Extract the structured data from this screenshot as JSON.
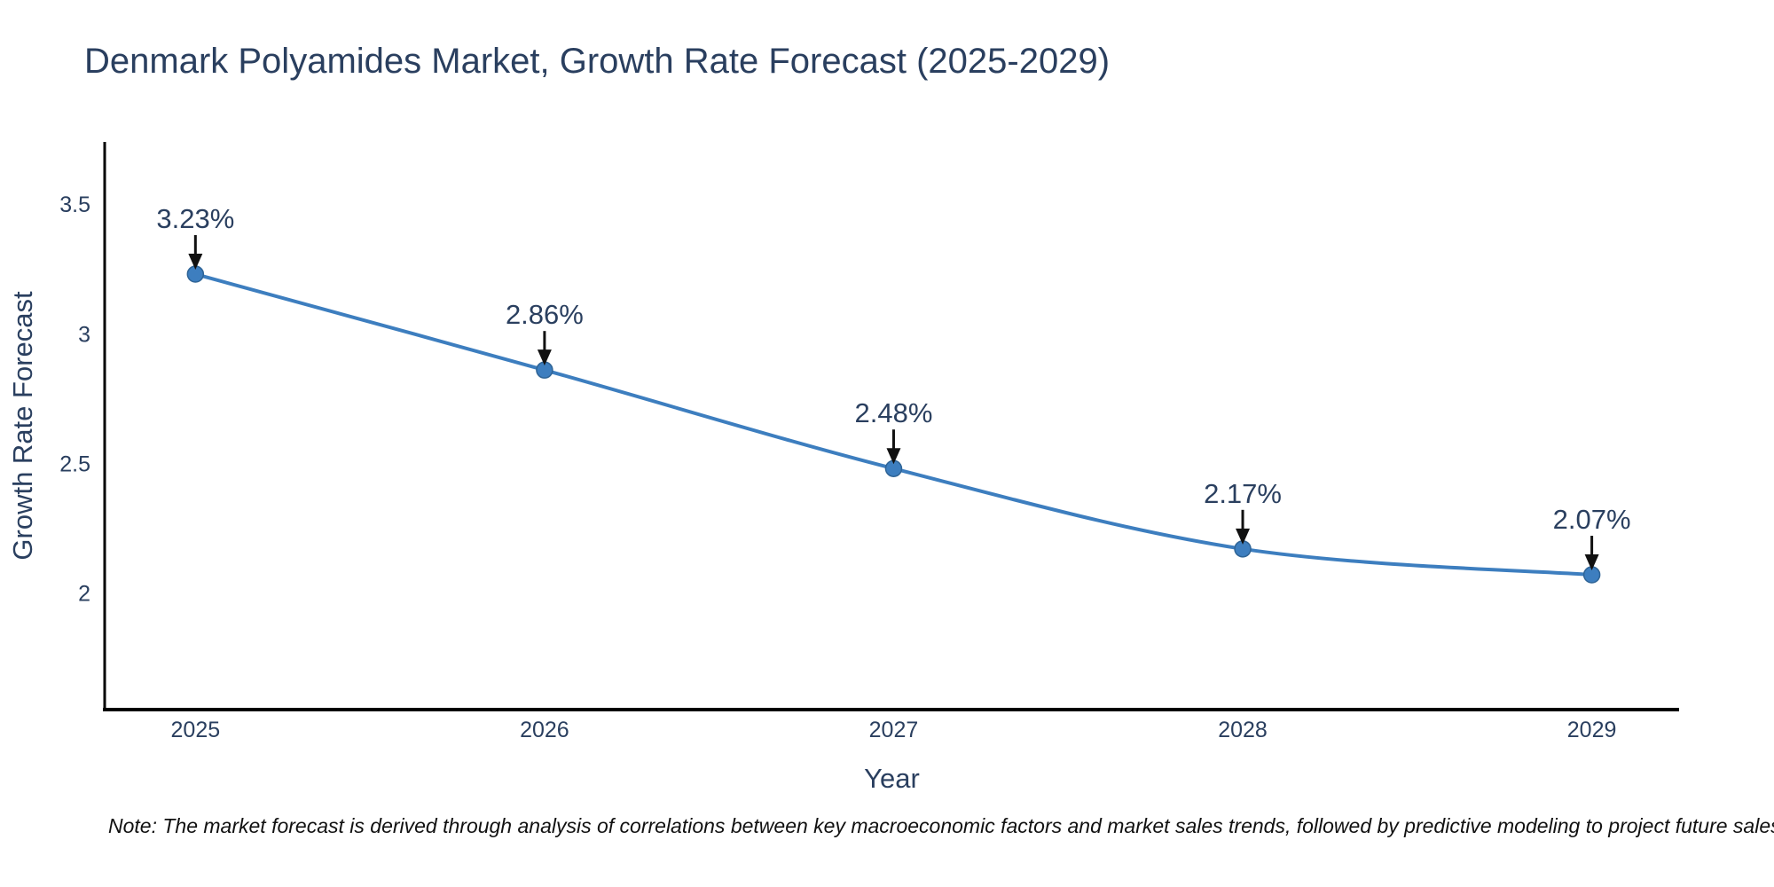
{
  "note": "Note: The market forecast is derived through analysis of correlations between key macroeconomic factors and market sales trends, followed by predictive modeling to project future sales",
  "chart_data": {
    "type": "line",
    "title": "Denmark Polyamides Market, Growth Rate Forecast (2025-2029)",
    "xlabel": "Year",
    "ylabel": "Growth Rate Forecast",
    "x": [
      2025,
      2026,
      2027,
      2028,
      2029
    ],
    "values": [
      3.23,
      2.86,
      2.48,
      2.17,
      2.07
    ],
    "point_labels": [
      "3.23%",
      "2.86%",
      "2.48%",
      "2.17%",
      "2.07%"
    ],
    "xtick_labels": [
      "2025",
      "2026",
      "2027",
      "2028",
      "2029"
    ],
    "yticks": [
      2,
      2.5,
      3,
      3.5
    ],
    "xlim": [
      2024.74,
      2029.25
    ],
    "ylim": [
      1.55,
      3.74
    ],
    "grid": false,
    "legend": "none",
    "line_color": "#3d7ebf",
    "marker_color": "#3d7ebf",
    "marker_edge_color": "#2f6496",
    "axis_line_color": "#000000",
    "text_color": "#2a3f5f",
    "annotation_arrow_color": "#111111"
  }
}
